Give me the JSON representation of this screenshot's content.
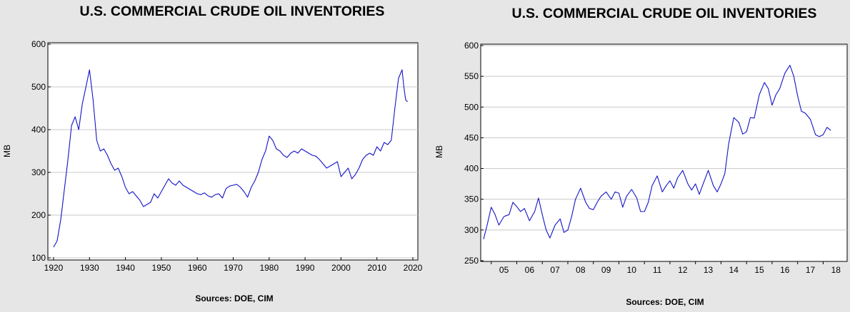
{
  "chart_data": [
    {
      "type": "line",
      "title": "U.S. COMMERCIAL CRUDE OIL INVENTORIES",
      "ylabel": "MB",
      "xlabel": "",
      "source": "Sources:  DOE, CIM",
      "ylim": [
        100,
        600
      ],
      "xlim": [
        1920,
        2020
      ],
      "yticks": [
        "100",
        "200",
        "300",
        "400",
        "500",
        "600"
      ],
      "xticks": [
        "1920",
        "1930",
        "1940",
        "1950",
        "1960",
        "1970",
        "1980",
        "1990",
        "2000",
        "2010",
        "2020"
      ],
      "grid": true,
      "series": [
        {
          "color": "#1414c8",
          "x": [
            1920,
            1921,
            1922,
            1923,
            1924,
            1925,
            1926,
            1927,
            1928,
            1929,
            1930,
            1931,
            1932,
            1933,
            1934,
            1935,
            1936,
            1937,
            1938,
            1939,
            1940,
            1941,
            1942,
            1943,
            1944,
            1945,
            1946,
            1947,
            1948,
            1949,
            1950,
            1951,
            1952,
            1953,
            1954,
            1955,
            1956,
            1957,
            1958,
            1959,
            1960,
            1961,
            1962,
            1963,
            1964,
            1965,
            1966,
            1967,
            1968,
            1969,
            1970,
            1971,
            1972,
            1973,
            1974,
            1975,
            1976,
            1977,
            1978,
            1979,
            1980,
            1981,
            1982,
            1983,
            1984,
            1985,
            1986,
            1987,
            1988,
            1989,
            1990,
            1991,
            1992,
            1993,
            1994,
            1995,
            1996,
            1997,
            1998,
            1999,
            2000,
            2001,
            2002,
            2003,
            2004,
            2005,
            2006,
            2007,
            2008,
            2009,
            2010,
            2011,
            2012,
            2013,
            2014,
            2015,
            2016,
            2017,
            2017.5,
            2018,
            2018.5
          ],
          "values": [
            125,
            140,
            190,
            260,
            330,
            410,
            430,
            400,
            460,
            500,
            540,
            470,
            375,
            350,
            355,
            340,
            320,
            305,
            310,
            290,
            265,
            250,
            255,
            245,
            235,
            220,
            225,
            230,
            250,
            240,
            255,
            270,
            285,
            275,
            270,
            280,
            270,
            265,
            260,
            255,
            250,
            248,
            252,
            245,
            242,
            248,
            250,
            240,
            262,
            268,
            270,
            272,
            265,
            255,
            242,
            265,
            280,
            300,
            330,
            350,
            385,
            375,
            355,
            350,
            340,
            335,
            345,
            350,
            345,
            355,
            350,
            345,
            340,
            338,
            330,
            320,
            310,
            315,
            320,
            325,
            290,
            300,
            310,
            285,
            295,
            310,
            330,
            340,
            345,
            340,
            360,
            350,
            370,
            365,
            375,
            450,
            520,
            540,
            500,
            470,
            465
          ]
        }
      ]
    },
    {
      "type": "line",
      "title": "U.S. COMMERCIAL CRUDE OIL INVENTORIES",
      "ylabel": "MB",
      "xlabel": "",
      "source": "Sources:  DOE, CIM",
      "ylim": [
        250,
        600
      ],
      "xlim": [
        2004.7,
        2018.8
      ],
      "yticks": [
        "250",
        "300",
        "350",
        "400",
        "450",
        "500",
        "550",
        "600"
      ],
      "xticks": [
        "05",
        "06",
        "07",
        "08",
        "09",
        "10",
        "11",
        "12",
        "13",
        "14",
        "15",
        "16",
        "17",
        "18"
      ],
      "grid": true,
      "series": [
        {
          "color": "#1414c8",
          "x": [
            2004.7,
            2004.85,
            2005.0,
            2005.15,
            2005.3,
            2005.5,
            2005.7,
            2005.85,
            2006.0,
            2006.15,
            2006.3,
            2006.5,
            2006.7,
            2006.85,
            2007.0,
            2007.15,
            2007.3,
            2007.5,
            2007.7,
            2007.85,
            2008.0,
            2008.15,
            2008.3,
            2008.5,
            2008.7,
            2008.85,
            2009.0,
            2009.15,
            2009.3,
            2009.5,
            2009.7,
            2009.85,
            2010.0,
            2010.15,
            2010.3,
            2010.5,
            2010.7,
            2010.85,
            2011.0,
            2011.15,
            2011.3,
            2011.5,
            2011.7,
            2011.85,
            2012.0,
            2012.15,
            2012.3,
            2012.5,
            2012.7,
            2012.85,
            2013.0,
            2013.15,
            2013.3,
            2013.5,
            2013.7,
            2013.85,
            2014.0,
            2014.15,
            2014.3,
            2014.5,
            2014.7,
            2014.85,
            2015.0,
            2015.15,
            2015.3,
            2015.5,
            2015.7,
            2015.85,
            2016.0,
            2016.15,
            2016.3,
            2016.5,
            2016.7,
            2016.85,
            2017.0,
            2017.15,
            2017.3,
            2017.5,
            2017.7,
            2017.85,
            2018.0,
            2018.15,
            2018.3
          ],
          "values": [
            285,
            310,
            337,
            325,
            308,
            322,
            325,
            345,
            338,
            330,
            335,
            315,
            330,
            352,
            325,
            300,
            287,
            308,
            318,
            296,
            300,
            322,
            350,
            368,
            345,
            335,
            333,
            345,
            355,
            362,
            350,
            362,
            360,
            337,
            355,
            366,
            352,
            330,
            330,
            345,
            372,
            388,
            362,
            372,
            380,
            368,
            385,
            397,
            375,
            365,
            375,
            358,
            375,
            397,
            372,
            362,
            375,
            392,
            440,
            483,
            475,
            456,
            460,
            483,
            482,
            520,
            540,
            530,
            503,
            520,
            530,
            555,
            568,
            550,
            518,
            493,
            490,
            480,
            455,
            452,
            455,
            467,
            462
          ]
        }
      ]
    }
  ]
}
